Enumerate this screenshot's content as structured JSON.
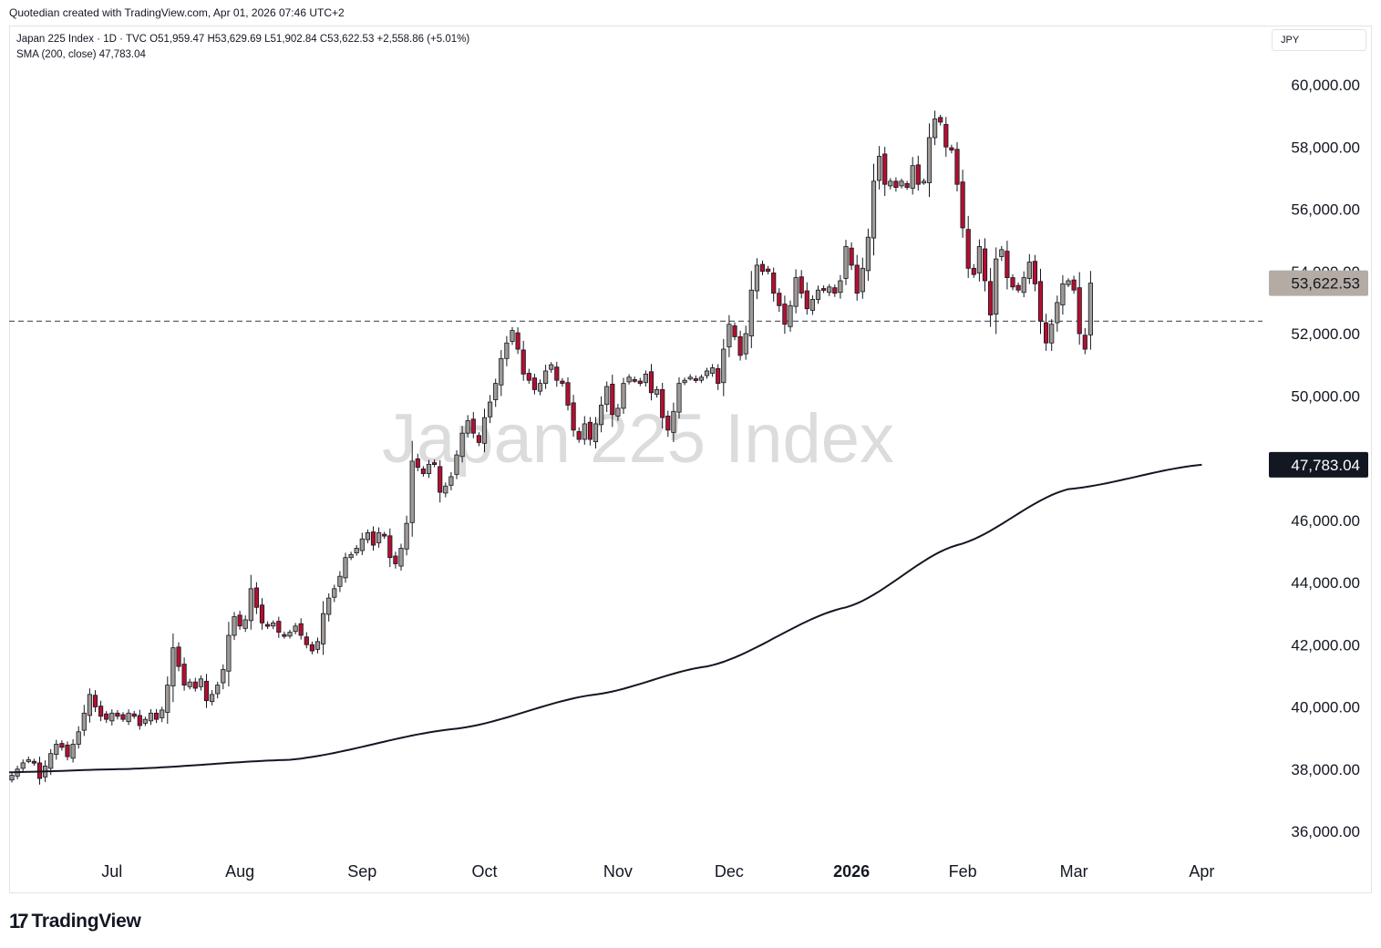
{
  "header": {
    "caption": "Quotedian created with TradingView.com, Apr 01, 2026 07:46 UTC+2"
  },
  "legend": {
    "line1": "Japan 225 Index · 1D · TVC  O51,959.47  H53,629.69  L51,902.84  C53,622.53  +2,558.86 (+5.01%)",
    "line2": "SMA (200, close)  47,783.04"
  },
  "currency": "JPY",
  "brand": {
    "name": "TradingView",
    "logo": "17"
  },
  "colors": {
    "up": "#a09a94",
    "down": "#b2102f",
    "wick": "#131722",
    "sma": "#131722",
    "level": "#5d606b",
    "watermark": "#dcdcdc"
  },
  "chart_data": {
    "type": "candlestick",
    "title": "Japan 225 Index",
    "watermark": "Japan 225 Index",
    "ylim": [
      34800,
      61200
    ],
    "yticks": [
      36000,
      38000,
      40000,
      42000,
      44000,
      46000,
      48000,
      50000,
      52000,
      54000,
      56000,
      58000,
      60000
    ],
    "ytick_labels": [
      "36,000.00",
      "38,000.00",
      "40,000.00",
      "42,000.00",
      "44,000.00",
      "46,000.00",
      "48,000.00",
      "50,000.00",
      "52,000.00",
      "54,000.00",
      "56,000.00",
      "58,000.00",
      "60,000.00"
    ],
    "x_labels": [
      {
        "index": 18,
        "label": "Jul",
        "bold": false
      },
      {
        "index": 41,
        "label": "Aug",
        "bold": false
      },
      {
        "index": 63,
        "label": "Sep",
        "bold": false
      },
      {
        "index": 85,
        "label": "Oct",
        "bold": false
      },
      {
        "index": 109,
        "label": "Nov",
        "bold": false
      },
      {
        "index": 129,
        "label": "Dec",
        "bold": false
      },
      {
        "index": 151,
        "label": "2026",
        "bold": true
      },
      {
        "index": 171,
        "label": "Feb",
        "bold": false
      },
      {
        "index": 191,
        "label": "Mar",
        "bold": false
      },
      {
        "index": 214,
        "label": "Apr",
        "bold": false
      }
    ],
    "horizontal_level": 52400,
    "last_price": {
      "value": 53622.53,
      "label": "53,622.53"
    },
    "sma": {
      "name": "SMA (200, close)",
      "value": 47783.04,
      "label": "47,783.04",
      "points": [
        [
          0,
          37900
        ],
        [
          20,
          38000
        ],
        [
          50,
          38300
        ],
        [
          80,
          39300
        ],
        [
          105,
          40400
        ],
        [
          125,
          41300
        ],
        [
          150,
          43200
        ],
        [
          170,
          45200
        ],
        [
          190,
          47000
        ],
        [
          214,
          47783
        ]
      ]
    },
    "closes": [
      37800,
      38000,
      38200,
      38300,
      38200,
      37700,
      38100,
      38500,
      38800,
      38700,
      38400,
      38800,
      39200,
      39800,
      40400,
      40000,
      39700,
      39600,
      39800,
      39700,
      39600,
      39800,
      39700,
      39400,
      39600,
      39800,
      39600,
      39900,
      40700,
      41900,
      41300,
      40700,
      40800,
      40600,
      40900,
      40200,
      40400,
      40700,
      41200,
      42300,
      42900,
      42600,
      42800,
      43800,
      43200,
      42700,
      42600,
      42700,
      42400,
      42300,
      42400,
      42600,
      42300,
      42000,
      41800,
      42100,
      43000,
      43500,
      43800,
      44200,
      44800,
      44900,
      45100,
      45400,
      45600,
      45200,
      45600,
      45500,
      44800,
      44600,
      45100,
      45900,
      47900,
      47700,
      47500,
      47800,
      47800,
      46900,
      47100,
      47400,
      48100,
      48800,
      49200,
      48800,
      48500,
      49300,
      49800,
      50400,
      51200,
      51700,
      52100,
      51500,
      50700,
      50500,
      50200,
      50400,
      50800,
      51000,
      50500,
      50400,
      49700,
      48900,
      48600,
      49100,
      48600,
      49100,
      49700,
      50300,
      49400,
      49600,
      50400,
      50600,
      50500,
      50400,
      50700,
      50100,
      50200,
      49300,
      48900,
      49500,
      50400,
      50500,
      50600,
      50500,
      50600,
      50800,
      50900,
      50400,
      51500,
      52300,
      51900,
      51300,
      52000,
      53400,
      54200,
      54000,
      54000,
      53300,
      52900,
      52300,
      52900,
      53800,
      53300,
      52800,
      53100,
      53400,
      53400,
      53500,
      53300,
      53700,
      54800,
      54200,
      53300,
      54100,
      55100,
      56900,
      57700,
      56800,
      56900,
      56700,
      56900,
      56700,
      57400,
      56800,
      56900,
      58300,
      58900,
      58800,
      58000,
      57900,
      56800,
      55400,
      54100,
      53900,
      54800,
      53700,
      52600,
      54400,
      54700,
      53800,
      53500,
      53400,
      53800,
      54300,
      53600,
      52400,
      51700,
      52300,
      53000,
      53600,
      53700,
      53400,
      52000,
      51500,
      53622.53
    ]
  }
}
